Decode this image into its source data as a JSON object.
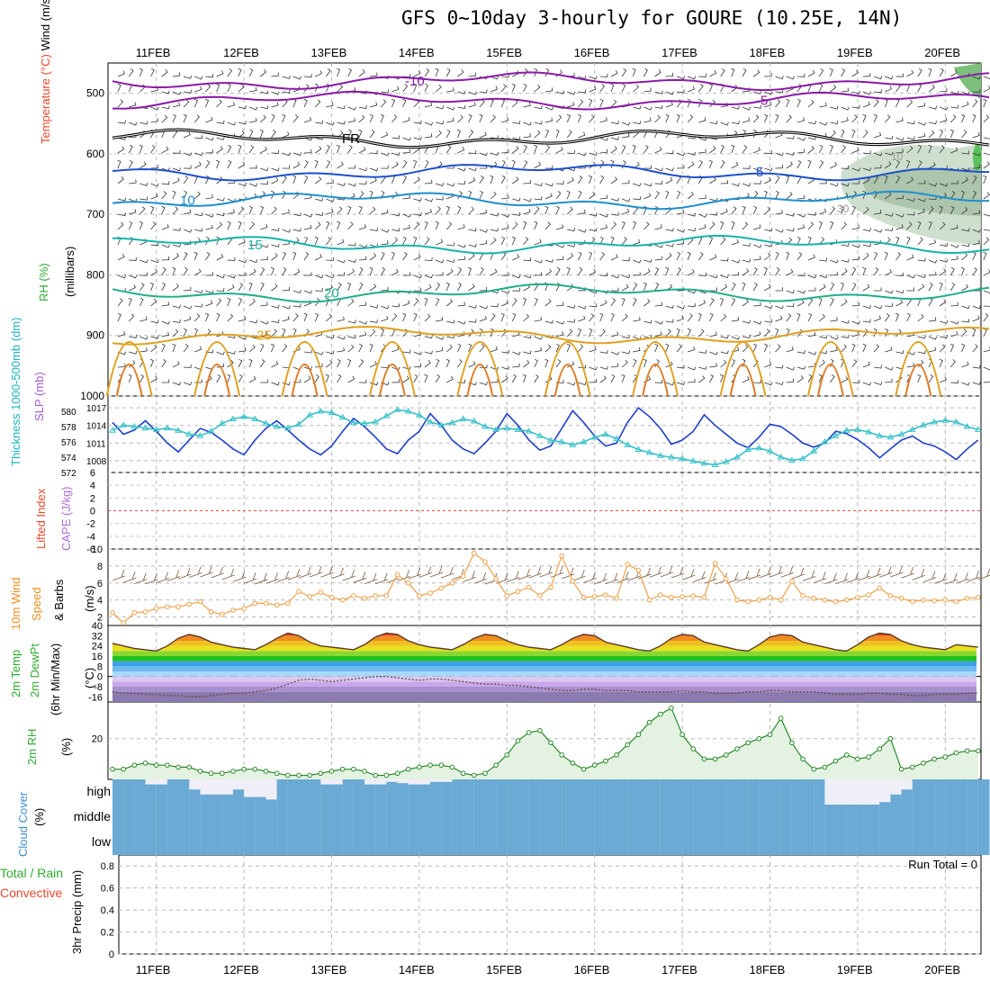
{
  "title": "GFS 0~10day 3-hourly for GOURE (10.25E, 14N)",
  "dates": [
    "11FEB",
    "12FEB",
    "13FEB",
    "14FEB",
    "15FEB",
    "16FEB",
    "17FEB",
    "18FEB",
    "19FEB",
    "20FEB"
  ],
  "run_total": "Run Total = 0",
  "colors": {
    "wind_label": "#000000",
    "temp_label": "#e8482c",
    "rh_label": "#2faa2f",
    "thickness_label": "#1fb3c2",
    "slp_label": "#a05cd0",
    "li_label": "#e8482c",
    "cape_label": "#b06cd8",
    "wind10_label": "#f08c1e",
    "cloud_label": "#3c8ed0",
    "precip_total": "#2faa2f",
    "precip_conv": "#e8482c",
    "slp_line": "#1f3fcc",
    "thickness_line": "#36c0c8",
    "cloud_fill": "#6aaad4",
    "cloud_clear": "#f0eef6",
    "wind10_line": "#f0a048",
    "rh_line": "#2a8a2a",
    "rh_fill": "#e4f2e2"
  },
  "chart_data": [
    {
      "type": "contour",
      "panel": "upper-air",
      "ylabel_parts": [
        "Wind (m/s)",
        "Temperature (°C)",
        "RH (%)"
      ],
      "yunit": "(millibars)",
      "yticks": [
        500,
        600,
        700,
        800,
        900,
        1000
      ],
      "ylim": [
        450,
        1000
      ],
      "isotherms": [
        {
          "label": "-10",
          "pressure": 480
        },
        {
          "label": "-5",
          "pressure": 512
        },
        {
          "label": "FR",
          "pressure": 575
        },
        {
          "label": "5",
          "pressure": 630
        },
        {
          "label": "10",
          "pressure": 677
        },
        {
          "label": "15",
          "pressure": 750
        },
        {
          "label": "20",
          "pressure": 830
        },
        {
          "label": "25",
          "pressure": 900
        }
      ],
      "rh_labels": [
        "10",
        "30"
      ]
    },
    {
      "type": "line",
      "panel": "slp-thickness",
      "ylabel_left": "Thickness 1000-500mb (dm)",
      "ylabel_right": "SLP (mb)",
      "yticks_left": [
        572,
        574,
        576,
        578,
        580
      ],
      "yticks_right": [
        1008,
        1011,
        1014,
        1017
      ],
      "ylim_left": [
        572,
        582
      ],
      "ylim_right": [
        1006,
        1019
      ],
      "series": [
        {
          "name": "SLP (mb)",
          "axis": "right",
          "values": [
            1014.5,
            1012.5,
            1013.2,
            1014.8,
            1013.0,
            1011.0,
            1009.5,
            1011.5,
            1013.5,
            1012.8,
            1011.5,
            1010.0,
            1009.0,
            1011.5,
            1013.5,
            1014.8,
            1013.2,
            1011.5,
            1010.0,
            1009.0,
            1010.5,
            1013.0,
            1015.2,
            1013.8,
            1012.0,
            1010.0,
            1009.2,
            1011.5,
            1013.0,
            1016.0,
            1014.0,
            1011.5,
            1010.0,
            1009.2,
            1011.0,
            1013.0,
            1016.0,
            1014.0,
            1011.5,
            1009.8,
            1010.5,
            1013.5,
            1016.5,
            1014.5,
            1012.2,
            1010.5,
            1011.0,
            1014.5,
            1017.0,
            1015.5,
            1013.5,
            1010.8,
            1011.5,
            1013.0,
            1015.8,
            1014.0,
            1012.5,
            1011.0,
            1010.2,
            1012.0,
            1014.2,
            1013.8,
            1012.5,
            1011.0,
            1010.3,
            1011.0,
            1013.0,
            1012.6,
            1011.6,
            1010.2,
            1008.5,
            1010.0,
            1011.5,
            1012.2,
            1011.0,
            1010.5,
            1009.5,
            1008.2,
            1010.0,
            1011.5
          ]
        },
        {
          "name": "Thickness (dm)",
          "axis": "left",
          "values": [
            577.5,
            578.2,
            578.0,
            577.8,
            577.6,
            577.8,
            577.5,
            577.0,
            576.8,
            577.4,
            578.4,
            579.0,
            579.3,
            579.0,
            578.4,
            578.0,
            577.8,
            578.3,
            579.5,
            580.0,
            579.8,
            579.2,
            578.5,
            578.4,
            578.6,
            579.4,
            580.2,
            580.0,
            579.5,
            578.6,
            578.2,
            578.5,
            579.0,
            578.7,
            578.0,
            577.6,
            577.8,
            577.6,
            577.4,
            576.8,
            576.2,
            576.0,
            575.6,
            576.0,
            576.6,
            577.0,
            576.4,
            575.6,
            575.0,
            574.6,
            574.2,
            574.0,
            573.8,
            573.5,
            573.2,
            573.0,
            573.4,
            574.0,
            575.0,
            575.2,
            574.8,
            574.0,
            573.6,
            573.8,
            574.8,
            576.0,
            576.8,
            577.5,
            577.6,
            577.3,
            576.8,
            576.6,
            577.0,
            577.6,
            578.2,
            578.6,
            578.8,
            578.6,
            578.0,
            577.6
          ]
        }
      ]
    },
    {
      "type": "line",
      "panel": "stability",
      "ylabel_left": "Lifted Index",
      "ylabel_right": "CAPE (J/kg)",
      "yticks": [
        "-6",
        "-4",
        "-2",
        "0",
        "2",
        "4",
        "6"
      ],
      "ylim": [
        -6,
        6
      ],
      "series": [
        {
          "name": "Lifted Index",
          "values": []
        }
      ]
    },
    {
      "type": "line",
      "panel": "wind10m",
      "ylabel": "10m Wind Speed & Barbs (m/s)",
      "yticks": [
        2,
        4,
        6,
        8,
        10
      ],
      "ylim": [
        1,
        10
      ],
      "series": [
        {
          "name": "10m Wind Speed",
          "values": [
            2.5,
            1.3,
            2.5,
            2.6,
            3.0,
            3.2,
            3.2,
            3.5,
            3.8,
            2.6,
            2.3,
            2.8,
            3.0,
            3.6,
            3.6,
            3.4,
            3.6,
            5.0,
            4.4,
            4.9,
            4.3,
            4.0,
            4.5,
            4.2,
            4.5,
            4.5,
            7.0,
            6.0,
            4.5,
            4.8,
            5.4,
            6.0,
            6.8,
            9.5,
            8.5,
            6.5,
            4.5,
            5.0,
            5.5,
            4.5,
            5.5,
            9.2,
            6.2,
            4.3,
            4.4,
            4.6,
            4.2,
            8.2,
            7.5,
            4.0,
            4.6,
            4.3,
            4.4,
            4.5,
            4.3,
            8.3,
            6.5,
            4.0,
            3.8,
            4.0,
            4.3,
            4.0,
            6.2,
            4.5,
            4.2,
            4.0,
            3.8,
            4.0,
            4.3,
            4.6,
            5.4,
            4.5,
            4.2,
            3.8,
            4.0,
            3.9,
            4.0,
            3.8,
            4.2,
            4.3
          ]
        }
      ]
    },
    {
      "type": "area",
      "panel": "temperature",
      "ylabel": "2m Temp 2m DewPt (6hr Min/Max) (°C)",
      "yticks": [
        -16,
        -8,
        0,
        8,
        16,
        24,
        32,
        40
      ],
      "ylim": [
        -20,
        40
      ],
      "series": [
        {
          "name": "2m Temp",
          "values": [
            26,
            24,
            22,
            21,
            20,
            24,
            30,
            33,
            31,
            27,
            25,
            23,
            22,
            21,
            25,
            30,
            34,
            32,
            27,
            24,
            23,
            22,
            21,
            25,
            31,
            34,
            33,
            28,
            25,
            23,
            22,
            21,
            25,
            30,
            33,
            32,
            28,
            25,
            23,
            22,
            21,
            25,
            30,
            33,
            32,
            27,
            25,
            23,
            21,
            20,
            24,
            30,
            33,
            32,
            27,
            25,
            23,
            21,
            20,
            25,
            31,
            33,
            32,
            27,
            25,
            23,
            21,
            20,
            25,
            31,
            34,
            33,
            28,
            25,
            23,
            22,
            21,
            25,
            24,
            23
          ]
        },
        {
          "name": "2m DewPt",
          "values": [
            -12,
            -13,
            -13,
            -14,
            -14,
            -15,
            -15,
            -16,
            -16,
            -15,
            -14,
            -13,
            -13,
            -12,
            -11,
            -9,
            -6,
            -3,
            -2,
            -3,
            -4,
            -3,
            -2,
            -1,
            0,
            0,
            -1,
            -2,
            -3,
            -2,
            -2,
            -3,
            -4,
            -5,
            -6,
            -6,
            -7,
            -7,
            -8,
            -9,
            -10,
            -11,
            -11,
            -10,
            -10,
            -11,
            -11,
            -11,
            -12,
            -12,
            -12,
            -12,
            -11,
            -12,
            -12,
            -13,
            -13,
            -13,
            -12,
            -12,
            -11,
            -11,
            -12,
            -12,
            -12,
            -13,
            -14,
            -14,
            -14,
            -13,
            -13,
            -14,
            -14,
            -15,
            -15,
            -14,
            -14,
            -14,
            -13,
            -13
          ]
        }
      ]
    },
    {
      "type": "area",
      "panel": "rh2m",
      "ylabel": "2m RH (%)",
      "yticks": [
        20
      ],
      "ylim": [
        0,
        38
      ],
      "series": [
        {
          "name": "2m RH",
          "values": [
            5,
            5,
            7,
            8,
            7,
            7,
            6,
            6,
            4,
            3,
            3,
            4,
            5,
            5,
            4,
            3,
            2,
            2,
            2,
            3,
            4,
            5,
            5,
            4,
            2,
            2,
            3,
            5,
            6,
            7,
            7,
            6,
            3,
            2,
            3,
            7,
            12,
            19,
            23,
            24,
            18,
            12,
            8,
            5,
            7,
            9,
            12,
            17,
            22,
            28,
            32,
            35,
            22,
            15,
            10,
            10,
            12,
            15,
            18,
            20,
            22,
            30,
            18,
            10,
            5,
            6,
            9,
            12,
            10,
            11,
            15,
            20,
            5,
            6,
            8,
            10,
            11,
            13,
            14,
            14
          ]
        }
      ]
    },
    {
      "type": "heatmap",
      "panel": "cloud",
      "ylabel": "Cloud Cover (%)",
      "row_labels": [
        "high",
        "middle",
        "low"
      ],
      "series": [
        {
          "name": "high",
          "values": [
            100,
            100,
            100,
            80,
            80,
            100,
            100,
            60,
            40,
            40,
            40,
            60,
            30,
            30,
            20,
            100,
            100,
            100,
            100,
            80,
            80,
            100,
            100,
            80,
            80,
            90,
            85,
            80,
            80,
            90,
            90,
            100,
            100,
            100,
            100,
            100,
            100,
            100,
            100,
            100,
            100,
            100,
            100,
            100,
            100,
            100,
            100,
            100,
            100,
            100,
            100,
            100,
            100,
            100,
            100,
            100,
            100,
            100,
            100,
            100,
            100,
            100,
            100,
            100,
            100,
            0,
            0,
            0,
            0,
            0,
            10,
            40,
            60,
            100,
            100,
            100,
            100,
            100,
            100,
            100
          ]
        },
        {
          "name": "middle",
          "values": [
            100,
            100,
            100,
            100,
            100,
            100,
            100,
            100,
            100,
            100,
            100,
            100,
            100,
            100,
            100,
            100,
            100,
            100,
            100,
            100,
            100,
            100,
            100,
            100,
            100,
            100,
            100,
            100,
            100,
            100,
            100,
            100,
            100,
            100,
            100,
            100,
            100,
            100,
            100,
            100,
            100,
            100,
            100,
            100,
            100,
            100,
            100,
            100,
            100,
            100,
            100,
            100,
            100,
            100,
            100,
            100,
            100,
            100,
            100,
            100,
            100,
            100,
            100,
            100,
            100,
            100,
            100,
            100,
            100,
            100,
            100,
            100,
            100,
            100,
            100,
            100,
            100,
            100,
            100,
            100
          ]
        },
        {
          "name": "low",
          "values": [
            100,
            100,
            100,
            100,
            100,
            100,
            100,
            100,
            100,
            100,
            100,
            100,
            100,
            100,
            100,
            100,
            100,
            100,
            100,
            100,
            100,
            100,
            100,
            100,
            100,
            100,
            100,
            100,
            100,
            100,
            100,
            100,
            100,
            100,
            100,
            100,
            100,
            100,
            100,
            100,
            100,
            100,
            100,
            100,
            100,
            100,
            100,
            100,
            100,
            100,
            100,
            100,
            100,
            100,
            100,
            100,
            100,
            100,
            100,
            100,
            100,
            100,
            100,
            100,
            100,
            100,
            100,
            100,
            100,
            100,
            100,
            100,
            100,
            100,
            100,
            100,
            100,
            100,
            100,
            100
          ]
        }
      ]
    },
    {
      "type": "bar",
      "panel": "precip",
      "ylabel": "3hr Precip (mm)",
      "legend": [
        "Total / Rain",
        "Convective"
      ],
      "yticks": [
        "0",
        "0.2",
        "0.4",
        "0.6",
        "0.8"
      ],
      "ylim": [
        0,
        0.9
      ],
      "series": [
        {
          "name": "Total / Rain",
          "values": []
        },
        {
          "name": "Convective",
          "values": []
        }
      ]
    }
  ]
}
